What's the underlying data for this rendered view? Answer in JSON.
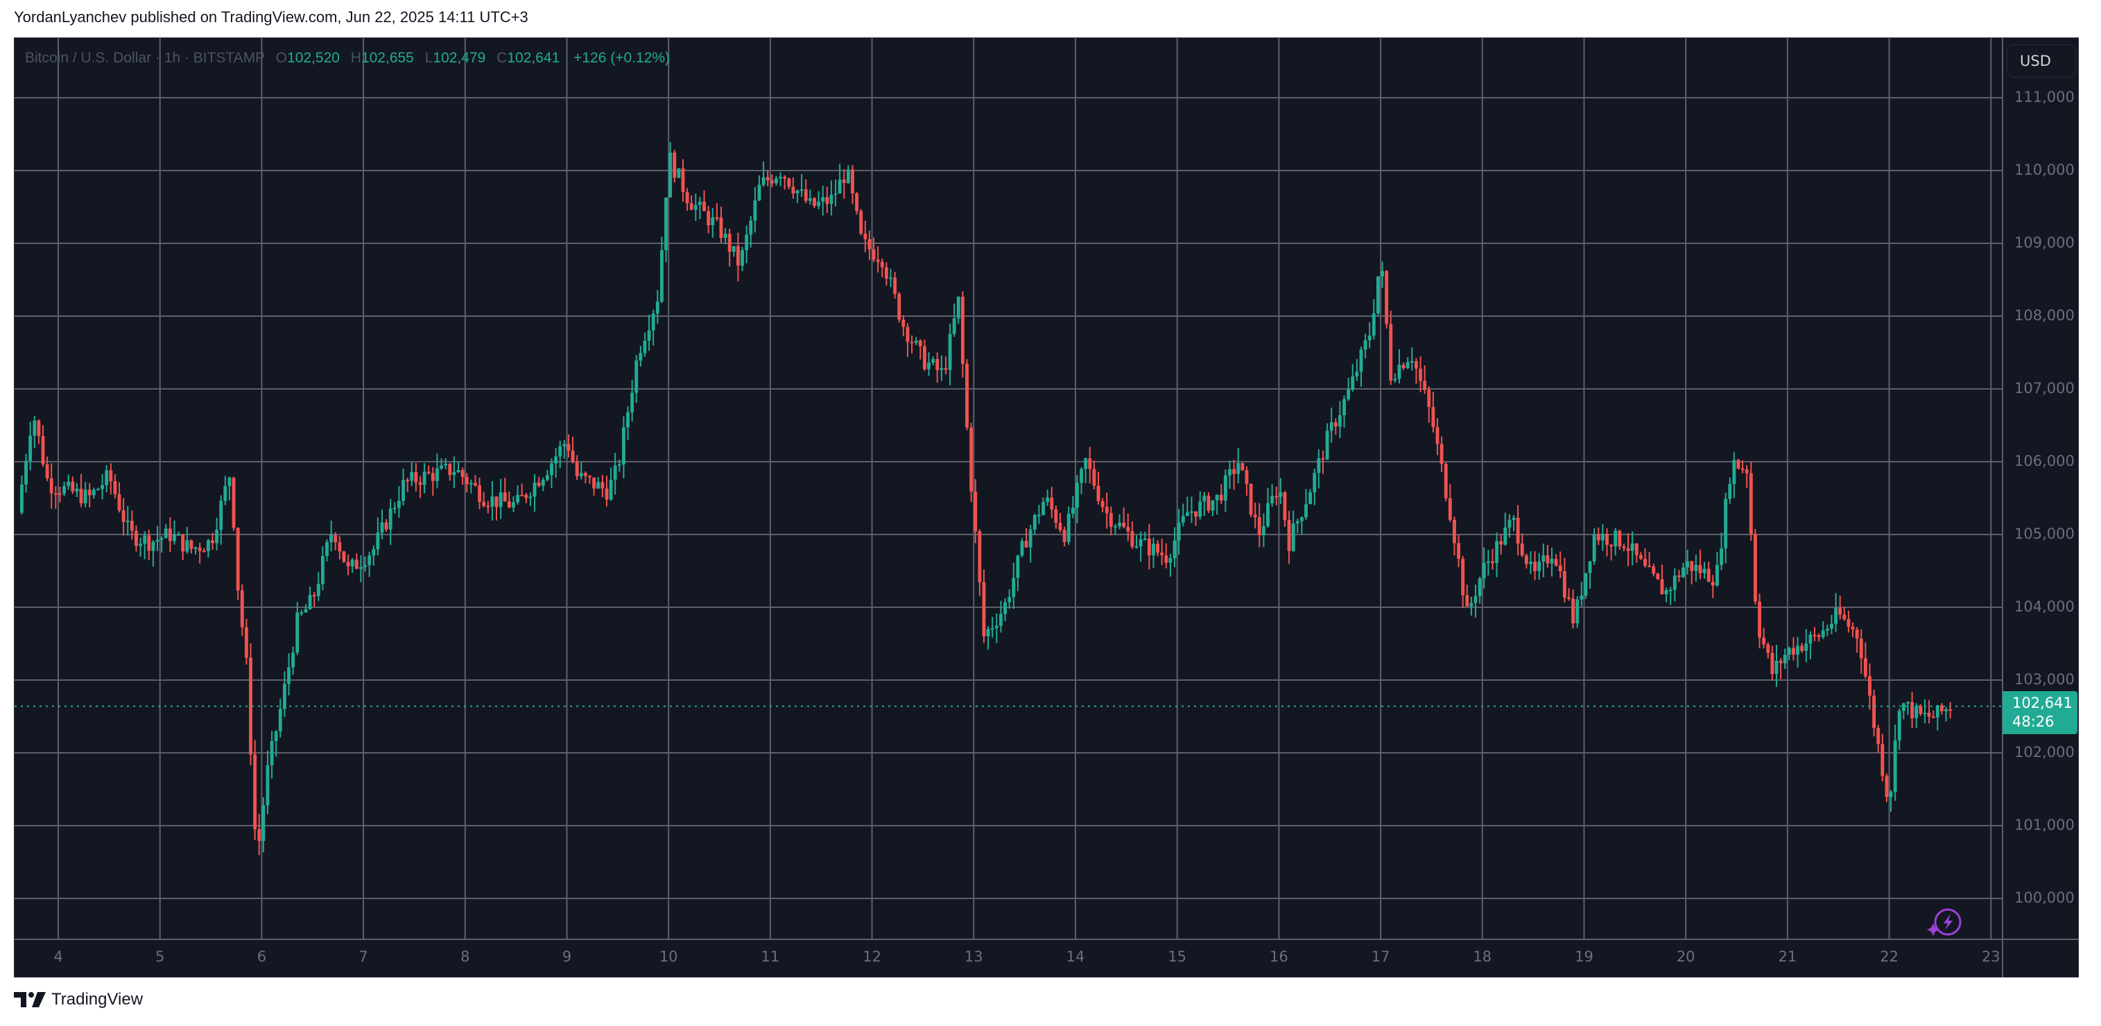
{
  "header": {
    "published": "YordanLyanchev published on TradingView.com, Jun 22, 2025 14:11 UTC+3"
  },
  "legend": {
    "symbol": "Bitcoin / U.S. Dollar · 1h · BITSTAMP",
    "o_label": "O",
    "o": "102,520",
    "h_label": "H",
    "h": "102,655",
    "l_label": "L",
    "l": "102,479",
    "c_label": "C",
    "c": "102,641",
    "change": "+126 (+0.12%)"
  },
  "price_axis": {
    "currency": "USD",
    "current_price": "102,641",
    "countdown": "48:26"
  },
  "footer": {
    "logo_text": "TradingView"
  },
  "colors": {
    "up": "#22ab94",
    "down": "#f05350",
    "bg": "#131722",
    "grid": "#5d606b",
    "accent_icon": "#9c42d6"
  },
  "chart_data": {
    "type": "candlestick",
    "title": "Bitcoin / U.S. Dollar · 1h · BITSTAMP",
    "xlabel": "",
    "ylabel": "USD",
    "ylim": [
      99500,
      111500
    ],
    "grid": true,
    "y_ticks": [
      100000,
      101000,
      102000,
      103000,
      104000,
      105000,
      106000,
      107000,
      108000,
      109000,
      110000,
      111000
    ],
    "y_tick_labels": [
      "100,000",
      "101,000",
      "102,000",
      "103,000",
      "104,000",
      "105,000",
      "106,000",
      "107,000",
      "108,000",
      "109,000",
      "110,000",
      "111,000"
    ],
    "x_ticks": [
      "4",
      "5",
      "6",
      "7",
      "8",
      "9",
      "10",
      "11",
      "12",
      "13",
      "14",
      "15",
      "16",
      "17",
      "18",
      "19",
      "20",
      "21",
      "22",
      "23"
    ],
    "last_price": 102641,
    "approx_path": [
      [
        3.6,
        105300
      ],
      [
        3.75,
        106700
      ],
      [
        3.9,
        105700
      ],
      [
        4.1,
        105600
      ],
      [
        4.3,
        105500
      ],
      [
        4.5,
        105800
      ],
      [
        4.7,
        105000
      ],
      [
        4.9,
        104900
      ],
      [
        5.1,
        105000
      ],
      [
        5.3,
        104800
      ],
      [
        5.5,
        104900
      ],
      [
        5.7,
        105900
      ],
      [
        5.75,
        104500
      ],
      [
        5.85,
        103200
      ],
      [
        5.95,
        100500
      ],
      [
        6.05,
        101700
      ],
      [
        6.2,
        102700
      ],
      [
        6.35,
        103800
      ],
      [
        6.5,
        104100
      ],
      [
        6.7,
        105100
      ],
      [
        6.85,
        104500
      ],
      [
        7.1,
        104800
      ],
      [
        7.4,
        105700
      ],
      [
        7.6,
        105800
      ],
      [
        7.9,
        105900
      ],
      [
        8.2,
        105500
      ],
      [
        8.5,
        105400
      ],
      [
        8.8,
        105900
      ],
      [
        9.0,
        106300
      ],
      [
        9.1,
        105800
      ],
      [
        9.4,
        105600
      ],
      [
        9.5,
        105900
      ],
      [
        9.7,
        107500
      ],
      [
        9.9,
        108300
      ],
      [
        10.0,
        110200
      ],
      [
        10.2,
        109600
      ],
      [
        10.5,
        109200
      ],
      [
        10.7,
        108700
      ],
      [
        10.9,
        109800
      ],
      [
        11.1,
        110000
      ],
      [
        11.4,
        109500
      ],
      [
        11.6,
        109600
      ],
      [
        11.75,
        110000
      ],
      [
        11.9,
        109000
      ],
      [
        12.1,
        108800
      ],
      [
        12.3,
        107900
      ],
      [
        12.5,
        107400
      ],
      [
        12.7,
        107200
      ],
      [
        12.85,
        108200
      ],
      [
        12.95,
        106100
      ],
      [
        13.1,
        103600
      ],
      [
        13.3,
        104000
      ],
      [
        13.5,
        104900
      ],
      [
        13.7,
        105500
      ],
      [
        13.9,
        105000
      ],
      [
        14.1,
        106000
      ],
      [
        14.3,
        105300
      ],
      [
        14.6,
        104900
      ],
      [
        14.9,
        104700
      ],
      [
        15.1,
        105300
      ],
      [
        15.4,
        105500
      ],
      [
        15.6,
        106000
      ],
      [
        15.8,
        105000
      ],
      [
        16.0,
        105700
      ],
      [
        16.1,
        104900
      ],
      [
        16.3,
        105600
      ],
      [
        16.5,
        106400
      ],
      [
        16.7,
        107000
      ],
      [
        16.9,
        107800
      ],
      [
        17.0,
        108800
      ],
      [
        17.1,
        107200
      ],
      [
        17.3,
        107500
      ],
      [
        17.5,
        106600
      ],
      [
        17.7,
        105200
      ],
      [
        17.85,
        103900
      ],
      [
        18.0,
        104500
      ],
      [
        18.3,
        105200
      ],
      [
        18.5,
        104400
      ],
      [
        18.7,
        104800
      ],
      [
        18.9,
        103800
      ],
      [
        19.1,
        105000
      ],
      [
        19.4,
        104900
      ],
      [
        19.6,
        104500
      ],
      [
        19.8,
        104200
      ],
      [
        20.0,
        104600
      ],
      [
        20.3,
        104400
      ],
      [
        20.45,
        106000
      ],
      [
        20.6,
        105900
      ],
      [
        20.7,
        103800
      ],
      [
        20.85,
        103100
      ],
      [
        21.0,
        103400
      ],
      [
        21.3,
        103600
      ],
      [
        21.5,
        103900
      ],
      [
        21.7,
        103600
      ],
      [
        21.85,
        102400
      ],
      [
        22.0,
        101300
      ],
      [
        22.1,
        102700
      ],
      [
        22.3,
        102500
      ],
      [
        22.45,
        102500
      ],
      [
        22.6,
        102641
      ]
    ]
  }
}
